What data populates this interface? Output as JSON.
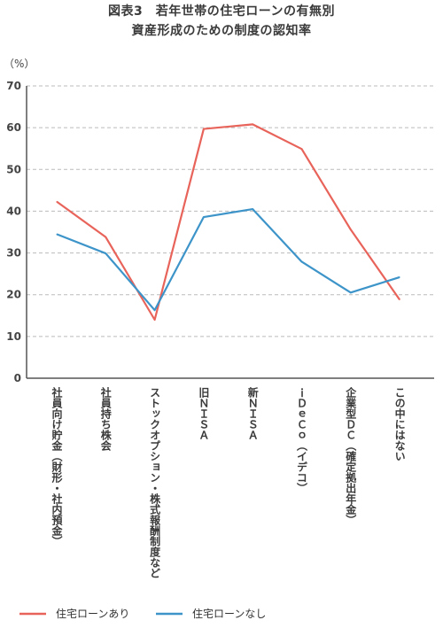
{
  "chart_data": {
    "type": "line",
    "title_line1": "図表3　若年世帯の住宅ローンの有無別",
    "title_line2": "資産形成のための制度の認知率",
    "ylabel": "（%）",
    "ylim": [
      0,
      70
    ],
    "yticks": [
      "0",
      "10",
      "20",
      "30",
      "40",
      "50",
      "60",
      "70"
    ],
    "grid": true,
    "legend_position": "bottom",
    "categories": [
      "社員向け貯金（財形・社内預金）",
      "社員持ち株会",
      "ストックオプション・株式報酬制度など",
      "旧ＮＩＳＡ",
      "新ＮＩＳＡ",
      "ｉＤｅＣｏ（イデコ）",
      "企業型ＤＣ（確定拠出年金）",
      "この中にはない"
    ],
    "series": [
      {
        "name": "住宅ローンあり",
        "color": "#e8635a",
        "values": [
          42.3,
          33.8,
          14.0,
          59.7,
          60.8,
          54.9,
          35.6,
          18.8
        ]
      },
      {
        "name": "住宅ローンなし",
        "color": "#3d94c9",
        "values": [
          34.5,
          29.9,
          16.3,
          38.6,
          40.5,
          27.9,
          20.5,
          24.2
        ]
      }
    ]
  }
}
